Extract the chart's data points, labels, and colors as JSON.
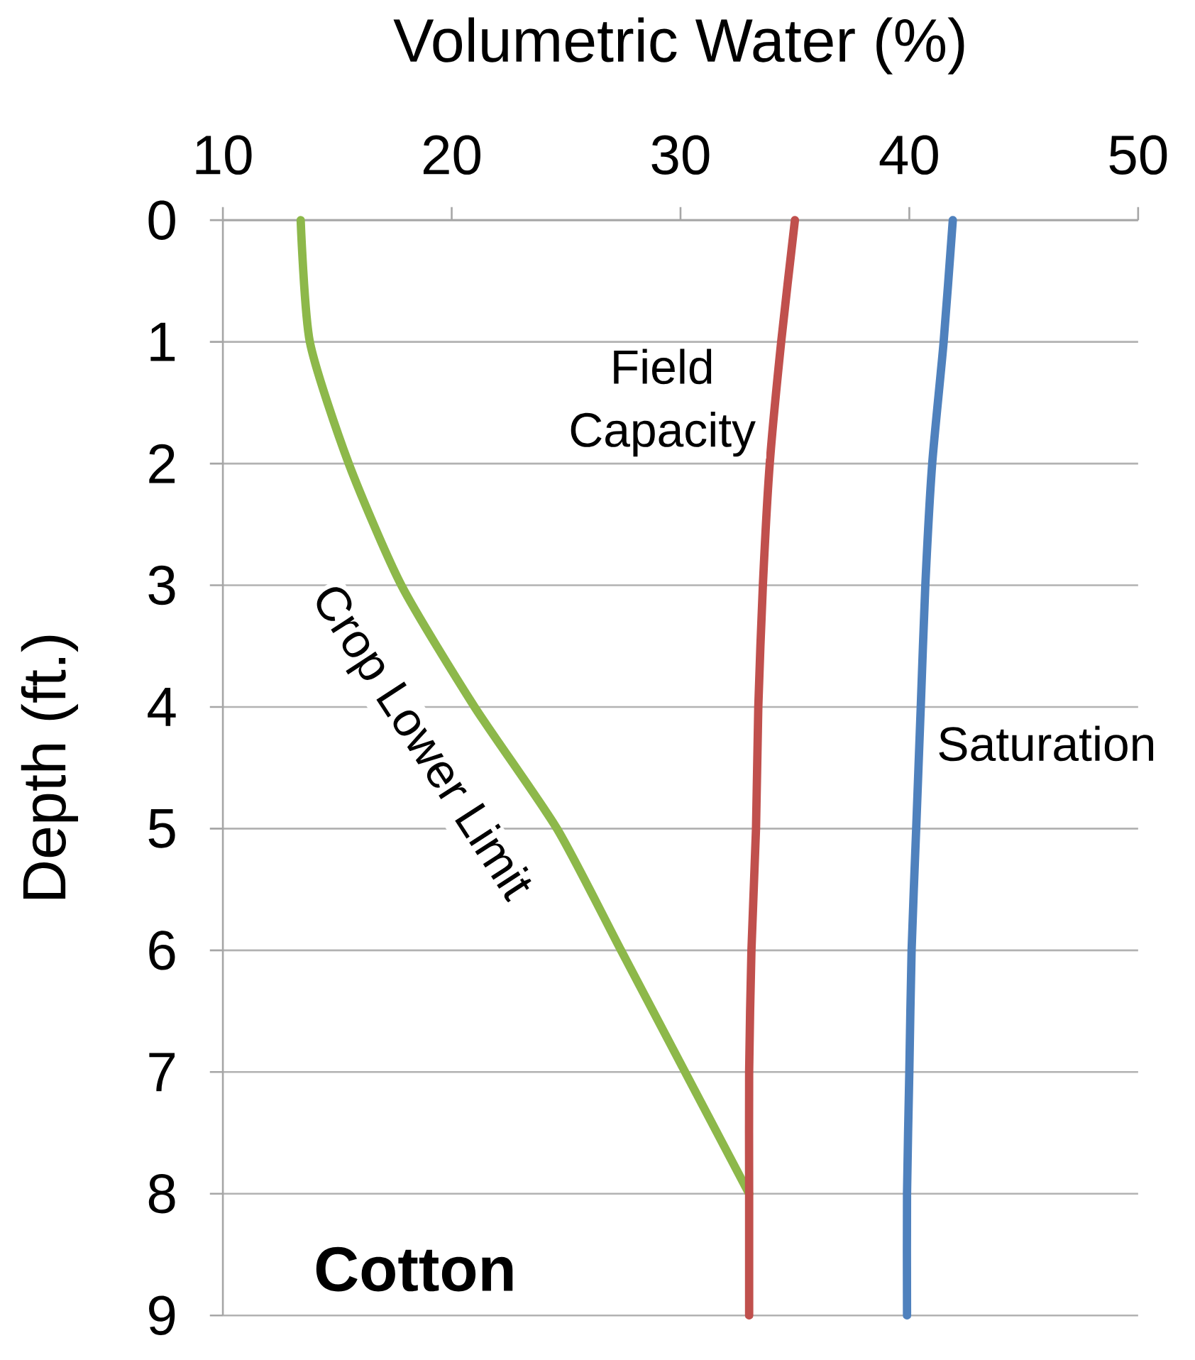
{
  "chart_data": {
    "type": "line",
    "xlabel": "Volumetric Water (%)",
    "ylabel": "Depth (ft.)",
    "xlim": [
      10,
      50
    ],
    "ylim": [
      9,
      0
    ],
    "xticks": [
      10,
      20,
      30,
      40,
      50
    ],
    "yticks": [
      0,
      1,
      2,
      3,
      4,
      5,
      6,
      7,
      8,
      9
    ],
    "grid": "y",
    "line_style": "solid",
    "series": [
      {
        "name": "Crop Lower Limit",
        "color": "#8db84a",
        "x": [
          13.4,
          13.8,
          15.5,
          17.8,
          21.0,
          24.6,
          27.4,
          30.2,
          33.0
        ],
        "values": [
          0,
          1,
          2,
          3,
          4,
          5,
          6,
          7,
          8
        ]
      },
      {
        "name": "Field Capacity",
        "color": "#c0504d",
        "x": [
          35.0,
          34.4,
          33.9,
          33.6,
          33.4,
          33.3,
          33.1,
          33.0,
          33.0,
          33.0
        ],
        "values": [
          0,
          1,
          2,
          3,
          4,
          5,
          6,
          7,
          8,
          9
        ]
      },
      {
        "name": "Saturation",
        "color": "#4f81bd",
        "x": [
          41.9,
          41.5,
          41.0,
          40.7,
          40.5,
          40.3,
          40.1,
          40.0,
          39.9,
          39.9
        ],
        "values": [
          0,
          1,
          2,
          3,
          4,
          5,
          6,
          7,
          8,
          9
        ]
      }
    ],
    "annotations": [
      "**Cotton**"
    ]
  }
}
